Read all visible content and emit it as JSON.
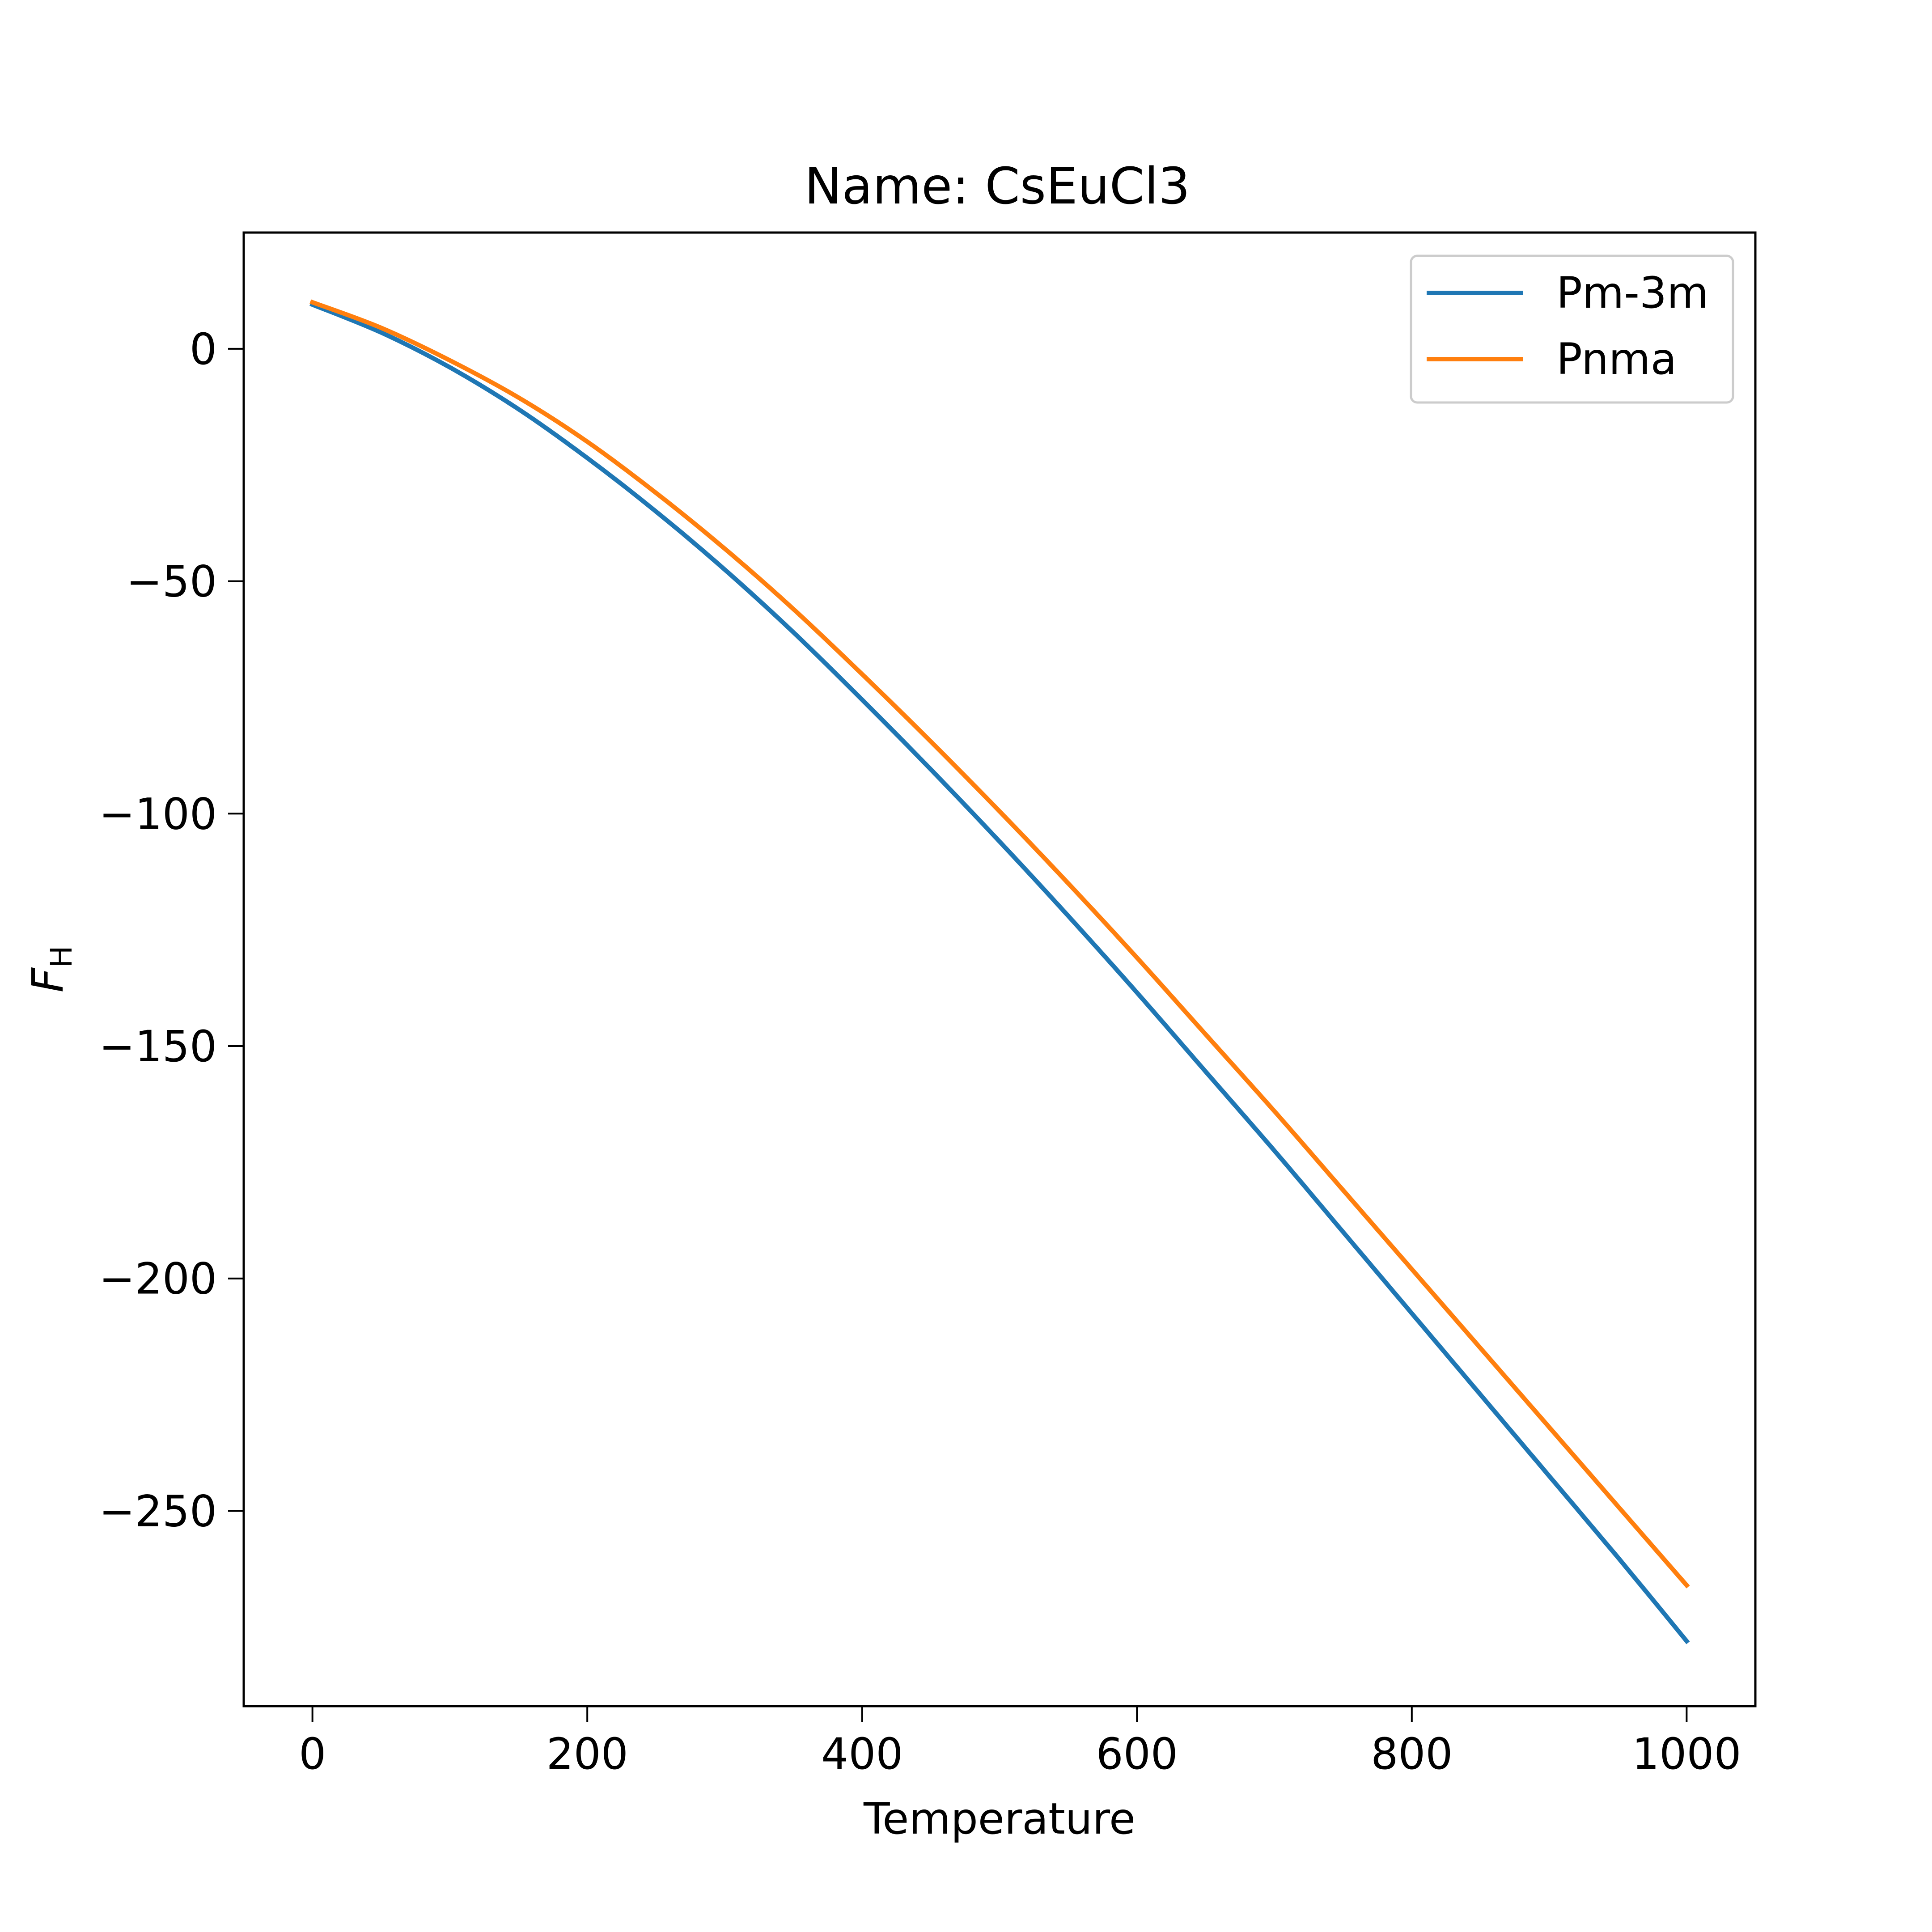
{
  "chart_data": {
    "type": "line",
    "title": "Name: CsEuCl3",
    "xlabel": "Temperature",
    "ylabel": {
      "main": "F",
      "sub": "H"
    },
    "xlim": [
      -50,
      1050
    ],
    "ylim": [
      -292,
      25
    ],
    "xticks": [
      0,
      200,
      400,
      600,
      800,
      1000
    ],
    "yticks": [
      0,
      -50,
      -100,
      -150,
      -200,
      -250
    ],
    "grid": false,
    "legend": "top-right",
    "x": [
      0,
      50,
      100,
      150,
      200,
      250,
      300,
      350,
      400,
      450,
      500,
      550,
      600,
      650,
      700,
      750,
      800,
      850,
      900,
      950,
      1000
    ],
    "series": [
      {
        "name": "Pm-3m",
        "color": "#1f77b4",
        "values": [
          9.5,
          3.5,
          -4.0,
          -13.0,
          -23.5,
          -35.0,
          -47.5,
          -61.0,
          -75.5,
          -90.5,
          -106.0,
          -122.0,
          -138.5,
          -155.5,
          -172.5,
          -190.0,
          -207.5,
          -225.0,
          -242.5,
          -260.0,
          -278.0
        ]
      },
      {
        "name": "Pnma",
        "color": "#ff7f0e",
        "values": [
          10.0,
          4.5,
          -2.5,
          -10.5,
          -20.0,
          -31.0,
          -43.0,
          -56.0,
          -70.0,
          -84.5,
          -99.5,
          -115.0,
          -131.0,
          -147.5,
          -164.0,
          -181.0,
          -198.0,
          -215.0,
          -232.0,
          -249.0,
          -266.0
        ]
      }
    ]
  }
}
